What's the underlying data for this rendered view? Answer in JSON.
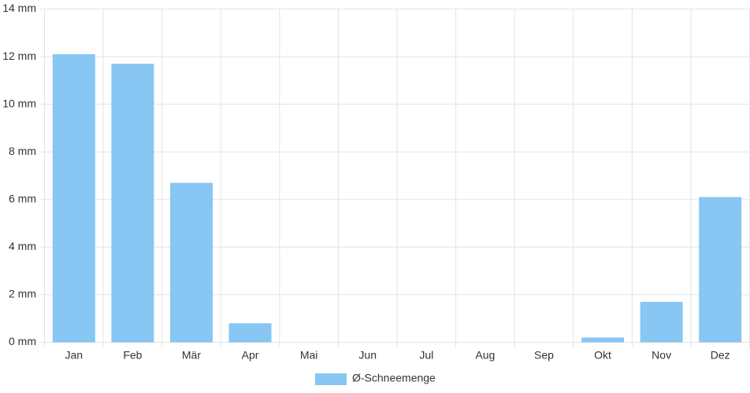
{
  "chart_data": {
    "type": "bar",
    "categories": [
      "Jan",
      "Feb",
      "Mär",
      "Apr",
      "Mai",
      "Jun",
      "Jul",
      "Aug",
      "Sep",
      "Okt",
      "Nov",
      "Dez"
    ],
    "series": [
      {
        "name": "Ø-Schneemenge",
        "color": "#88c6f3",
        "values": [
          12.1,
          11.7,
          6.7,
          0.8,
          0,
          0,
          0,
          0,
          0,
          0.2,
          1.7,
          6.1
        ]
      }
    ],
    "ylim": [
      0,
      14
    ],
    "yticks": [
      {
        "value": 0,
        "label": "0 mm"
      },
      {
        "value": 2,
        "label": "2 mm"
      },
      {
        "value": 4,
        "label": "4 mm"
      },
      {
        "value": 6,
        "label": "6 mm"
      },
      {
        "value": 8,
        "label": "8 mm"
      },
      {
        "value": 10,
        "label": "10 mm"
      },
      {
        "value": 12,
        "label": "12 mm"
      },
      {
        "value": 14,
        "label": "14 mm"
      }
    ],
    "grid": true,
    "legend": "bottom"
  }
}
